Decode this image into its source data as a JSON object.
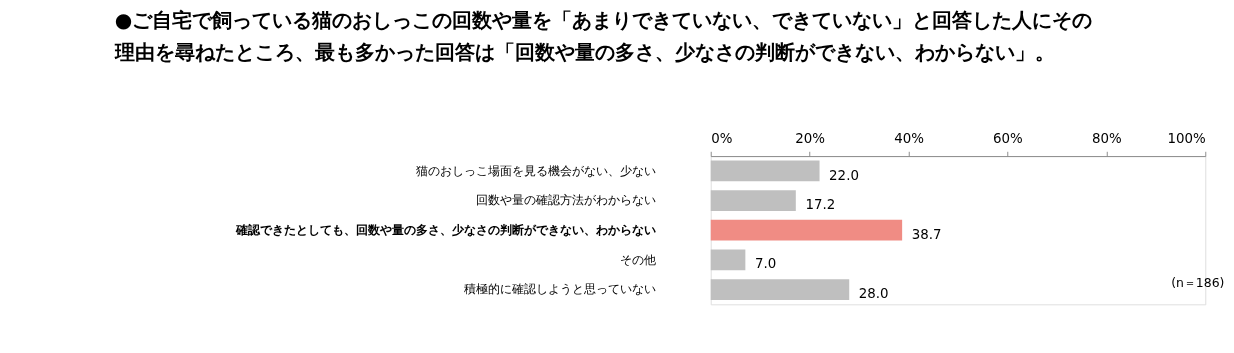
{
  "chart_data": {
    "type": "bar",
    "orientation": "horizontal",
    "title": "●ご自宅で飼っている猫のおしっこの回数や量を「あまりできていない、できていない」と回答した人にその理由を尋ねたところ、最も多かった回答は「回数や量の多さ、少なさの判断ができない、わからない」。",
    "categories": [
      "猫のおしっこ場面を見る機会がない、少ない",
      "回数や量の確認方法がわからない",
      "確認できたとしても、回数や量の多さ、少なさの判断ができない、わからない",
      "その他",
      "積極的に確認しようと思っていない"
    ],
    "values": [
      22.0,
      17.2,
      38.7,
      7.0,
      28.0
    ],
    "colors": [
      "#bfbfbf",
      "#bfbfbf",
      "#f08c84",
      "#bfbfbf",
      "#bfbfbf"
    ],
    "value_labels": [
      "22.0",
      "17.2",
      "38.7",
      "7.0",
      "28.0"
    ],
    "xlim": [
      0,
      100
    ],
    "xticks": [
      {
        "value": 0,
        "label": "0%"
      },
      {
        "value": 20,
        "label": "20%"
      },
      {
        "value": 40,
        "label": "40%"
      },
      {
        "value": 60,
        "label": "60%"
      },
      {
        "value": 80,
        "label": "80%"
      },
      {
        "value": 100,
        "label": "100%"
      }
    ],
    "annotations": [
      "(n＝186)"
    ],
    "grid": false,
    "legend": false
  }
}
